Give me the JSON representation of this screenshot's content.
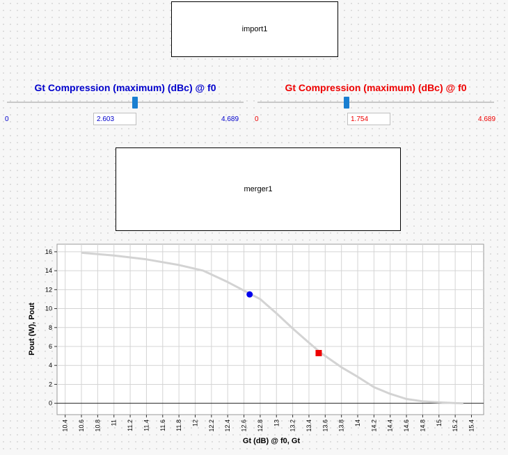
{
  "import_box": {
    "label": "import1"
  },
  "merger_box": {
    "label": "merger1"
  },
  "slider_left": {
    "title": "Gt Compression (maximum) (dBc) @ f0",
    "min_label": "0",
    "max_label": "4.689",
    "value": "2.603",
    "min": 0,
    "max": 4.689,
    "color": "#0000cc"
  },
  "slider_right": {
    "title": "Gt Compression (maximum) (dBc) @ f0",
    "min_label": "0",
    "max_label": "4.689",
    "value": "1.754",
    "min": 0,
    "max": 4.689,
    "color": "#ee0000"
  },
  "chart_data": {
    "type": "line",
    "xlabel": "Gt (dB) @ f0, Gt",
    "ylabel": "Pout (W), Pout",
    "xlim": [
      10.3,
      15.55
    ],
    "ylim": [
      -1.2,
      16.8
    ],
    "x_ticks": [
      "10.4",
      "10.6",
      "10.8",
      "11",
      "11.2",
      "11.4",
      "11.6",
      "11.8",
      "12",
      "12.2",
      "12.4",
      "12.6",
      "12.8",
      "13",
      "13.2",
      "13.4",
      "13.6",
      "13.8",
      "14",
      "14.2",
      "14.4",
      "14.6",
      "14.8",
      "15",
      "15.2",
      "15.4"
    ],
    "y_ticks": [
      "0",
      "2",
      "4",
      "6",
      "8",
      "10",
      "12",
      "14",
      "16"
    ],
    "grid": true,
    "series": [
      {
        "color": "#d3d3d3",
        "points": [
          [
            10.6,
            15.9
          ],
          [
            11.0,
            15.6
          ],
          [
            11.4,
            15.2
          ],
          [
            11.8,
            14.6
          ],
          [
            12.1,
            14.0
          ],
          [
            12.4,
            12.8
          ],
          [
            12.6,
            11.9
          ],
          [
            12.8,
            11.0
          ],
          [
            13.0,
            9.5
          ],
          [
            13.2,
            7.9
          ],
          [
            13.4,
            6.4
          ],
          [
            13.55,
            5.3
          ],
          [
            13.8,
            3.8
          ],
          [
            14.0,
            2.8
          ],
          [
            14.2,
            1.7
          ],
          [
            14.4,
            1.0
          ],
          [
            14.6,
            0.45
          ],
          [
            14.8,
            0.2
          ],
          [
            15.0,
            0.1
          ],
          [
            15.2,
            0.02
          ],
          [
            15.3,
            0
          ]
        ]
      }
    ],
    "markers": [
      {
        "shape": "circle",
        "color": "#0000ee",
        "x": 12.67,
        "y": 11.5
      },
      {
        "shape": "square",
        "color": "#ee0000",
        "x": 13.52,
        "y": 5.3
      }
    ]
  }
}
